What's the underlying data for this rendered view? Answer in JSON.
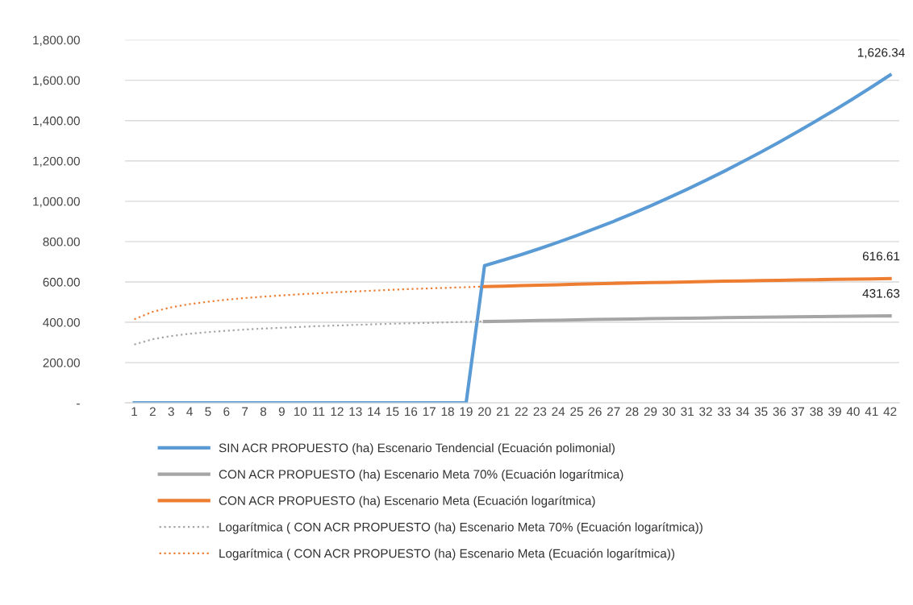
{
  "chart_data": {
    "type": "line",
    "categories": [
      "1",
      "2",
      "3",
      "4",
      "5",
      "6",
      "7",
      "8",
      "9",
      "10",
      "11",
      "12",
      "13",
      "14",
      "15",
      "16",
      "17",
      "18",
      "19",
      "20",
      "21",
      "22",
      "23",
      "24",
      "25",
      "26",
      "27",
      "28",
      "29",
      "30",
      "31",
      "32",
      "33",
      "34",
      "35",
      "36",
      "37",
      "38",
      "39",
      "40",
      "41",
      "42"
    ],
    "series": [
      {
        "name": "SIN ACR PROPUESTO (ha) Escenario Tendencial (Ecuación polimonial)",
        "color": "#5b9bd5",
        "line_style": "solid",
        "values": [
          0,
          0,
          0,
          0,
          0,
          0,
          0,
          0,
          0,
          0,
          0,
          0,
          0,
          0,
          0,
          0,
          0,
          0,
          0,
          681,
          708,
          736,
          766,
          797,
          830,
          865,
          900,
          938,
          977,
          1018,
          1060,
          1104,
          1149,
          1196,
          1244,
          1294,
          1346,
          1399,
          1453,
          1509,
          1567,
          1626.34
        ],
        "value_labels": [
          null,
          null,
          null,
          null,
          null,
          null,
          null,
          null,
          null,
          null,
          null,
          null,
          null,
          null,
          null,
          null,
          null,
          null,
          null,
          null,
          null,
          null,
          null,
          null,
          null,
          null,
          null,
          null,
          null,
          null,
          null,
          null,
          null,
          null,
          null,
          null,
          null,
          null,
          null,
          null,
          null,
          "1,626.34"
        ]
      },
      {
        "name": "CON ACR PROPUESTO (ha) Escenario Meta 70% (Ecuación logarítmica)",
        "color": "#a5a5a5",
        "line_style": "solid",
        "values": [
          null,
          null,
          null,
          null,
          null,
          null,
          null,
          null,
          null,
          null,
          null,
          null,
          null,
          null,
          null,
          null,
          null,
          null,
          null,
          404,
          405,
          407,
          409,
          410,
          412,
          414,
          415,
          416,
          418,
          419,
          420,
          421,
          423,
          424,
          425,
          426,
          427,
          428,
          429,
          430,
          431,
          431.63
        ],
        "value_labels": [
          null,
          null,
          null,
          null,
          null,
          null,
          null,
          null,
          null,
          null,
          null,
          null,
          null,
          null,
          null,
          null,
          null,
          null,
          null,
          null,
          null,
          null,
          null,
          null,
          null,
          null,
          null,
          null,
          null,
          null,
          null,
          null,
          null,
          null,
          null,
          null,
          null,
          null,
          null,
          null,
          null,
          "431.63"
        ]
      },
      {
        "name": "CON ACR PROPUESTO (ha) Escenario Meta (Ecuación logarítmica)",
        "color": "#ed7d31",
        "line_style": "solid",
        "values": [
          null,
          null,
          null,
          null,
          null,
          null,
          null,
          null,
          null,
          null,
          null,
          null,
          null,
          null,
          null,
          null,
          null,
          null,
          null,
          577,
          579,
          582,
          584,
          586,
          589,
          591,
          593,
          595,
          597,
          598,
          600,
          602,
          604,
          605,
          607,
          608,
          610,
          611,
          613,
          614,
          615,
          616.61
        ],
        "value_labels": [
          null,
          null,
          null,
          null,
          null,
          null,
          null,
          null,
          null,
          null,
          null,
          null,
          null,
          null,
          null,
          null,
          null,
          null,
          null,
          null,
          null,
          null,
          null,
          null,
          null,
          null,
          null,
          null,
          null,
          null,
          null,
          null,
          null,
          null,
          null,
          null,
          null,
          null,
          null,
          null,
          null,
          "616.61"
        ]
      },
      {
        "name": "Logarítmica ( CON ACR PROPUESTO (ha) Escenario Meta 70% (Ecuación logarítmica))",
        "color": "#a5a5a5",
        "line_style": "dotted",
        "values": [
          290,
          316,
          332,
          343,
          351,
          358,
          364,
          369,
          373,
          377,
          381,
          384,
          387,
          390,
          393,
          395,
          397,
          400,
          402,
          404,
          null,
          null,
          null,
          null,
          null,
          null,
          null,
          null,
          null,
          null,
          null,
          null,
          null,
          null,
          null,
          null,
          null,
          null,
          null,
          null,
          null,
          null
        ]
      },
      {
        "name": "Logarítmica ( CON ACR PROPUESTO (ha) Escenario Meta (Ecuación logarítmica))",
        "color": "#ed7d31",
        "line_style": "dotted",
        "values": [
          415,
          452,
          474,
          490,
          502,
          512,
          520,
          527,
          533,
          539,
          544,
          549,
          553,
          557,
          561,
          565,
          568,
          571,
          574,
          577,
          null,
          null,
          null,
          null,
          null,
          null,
          null,
          null,
          null,
          null,
          null,
          null,
          null,
          null,
          null,
          null,
          null,
          null,
          null,
          null,
          null,
          null
        ]
      }
    ],
    "ylim": [
      0,
      1800
    ],
    "yticks": [
      {
        "value": 0,
        "label": "-"
      },
      {
        "value": 200,
        "label": "200.00"
      },
      {
        "value": 400,
        "label": "400.00"
      },
      {
        "value": 600,
        "label": "600.00"
      },
      {
        "value": 800,
        "label": "800.00"
      },
      {
        "value": 1000,
        "label": "1,000.00"
      },
      {
        "value": 1200,
        "label": "1,200.00"
      },
      {
        "value": 1400,
        "label": "1,400.00"
      },
      {
        "value": 1600,
        "label": "1,600.00"
      },
      {
        "value": 1800,
        "label": "1,800.00"
      }
    ],
    "grid": "y",
    "legend": "bottom",
    "marker": "none"
  }
}
